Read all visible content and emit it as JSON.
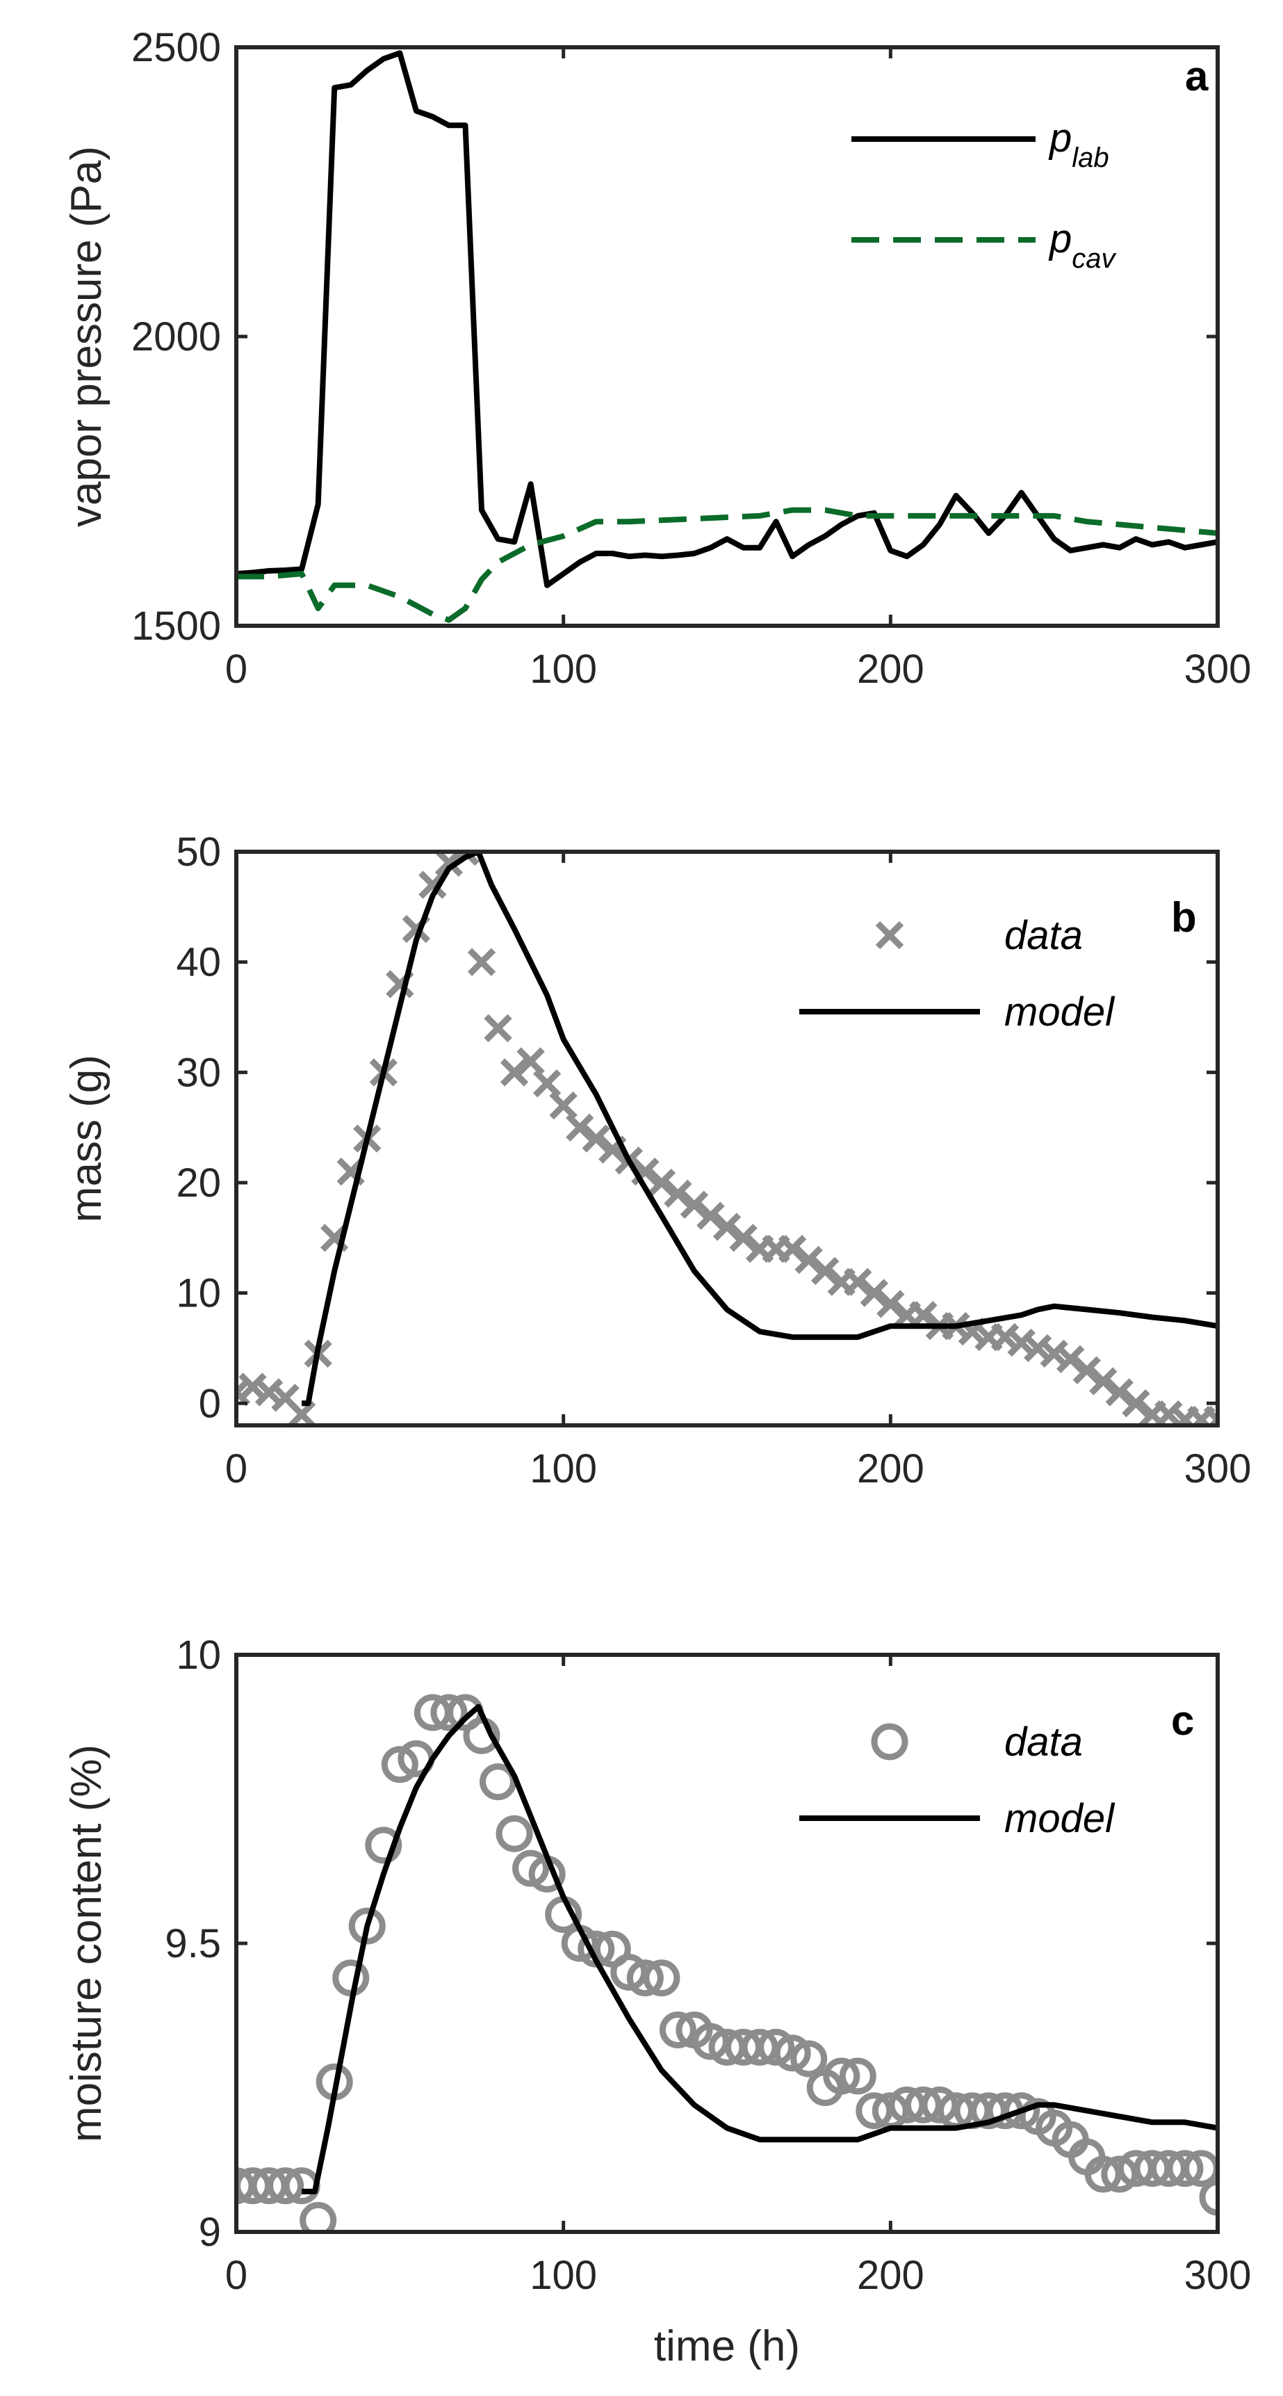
{
  "chart_data": [
    {
      "id": "a",
      "type": "line",
      "panel_label": "a",
      "xlabel": "",
      "ylabel": "vapor pressure (Pa)",
      "xlim": [
        0,
        300
      ],
      "ylim": [
        1500,
        2500
      ],
      "xticks": [
        0,
        100,
        200,
        300
      ],
      "yticks": [
        1500,
        2000,
        2500
      ],
      "legend_position": "top-right",
      "series": [
        {
          "name": "p_lab",
          "label_main": "p",
          "label_sub": "lab",
          "style": "solid",
          "color": "#000000",
          "x": [
            0,
            5,
            10,
            15,
            20,
            25,
            30,
            35,
            40,
            45,
            50,
            55,
            60,
            65,
            70,
            75,
            80,
            85,
            90,
            95,
            100,
            105,
            110,
            115,
            120,
            125,
            130,
            135,
            140,
            145,
            150,
            155,
            160,
            165,
            170,
            175,
            180,
            185,
            190,
            195,
            200,
            205,
            210,
            215,
            220,
            225,
            230,
            235,
            240,
            245,
            250,
            255,
            260,
            265,
            270,
            275,
            280,
            285,
            290,
            295,
            300
          ],
          "y": [
            1590,
            1592,
            1595,
            1596,
            1598,
            1710,
            2430,
            2435,
            2460,
            2480,
            2490,
            2390,
            2380,
            2365,
            2365,
            1700,
            1650,
            1645,
            1745,
            1570,
            1590,
            1610,
            1625,
            1625,
            1620,
            1622,
            1620,
            1622,
            1625,
            1635,
            1650,
            1635,
            1635,
            1680,
            1620,
            1640,
            1655,
            1675,
            1690,
            1695,
            1630,
            1620,
            1640,
            1675,
            1725,
            1695,
            1660,
            1690,
            1730,
            1690,
            1650,
            1630,
            1635,
            1640,
            1635,
            1650,
            1640,
            1645,
            1635,
            1640,
            1645
          ]
        },
        {
          "name": "p_cav",
          "label_main": "p",
          "label_sub": "cav",
          "style": "dashed",
          "color": "#0b6b2a",
          "x": [
            0,
            10,
            20,
            25,
            30,
            40,
            50,
            60,
            65,
            70,
            75,
            80,
            90,
            100,
            110,
            120,
            140,
            160,
            170,
            180,
            190,
            200,
            220,
            240,
            250,
            260,
            270,
            280,
            290,
            300
          ],
          "y": [
            1585,
            1585,
            1590,
            1530,
            1570,
            1570,
            1550,
            1520,
            1510,
            1530,
            1580,
            1610,
            1640,
            1655,
            1680,
            1680,
            1685,
            1690,
            1700,
            1700,
            1690,
            1690,
            1690,
            1690,
            1690,
            1680,
            1675,
            1670,
            1665,
            1660
          ]
        }
      ]
    },
    {
      "id": "b",
      "type": "scatter+line",
      "panel_label": "b",
      "xlabel": "",
      "ylabel": "mass (g)",
      "xlim": [
        0,
        300
      ],
      "ylim": [
        -2,
        50
      ],
      "xticks": [
        0,
        100,
        200,
        300
      ],
      "yticks": [
        0,
        10,
        20,
        30,
        40,
        50
      ],
      "legend_position": "top-right",
      "series": [
        {
          "name": "data",
          "marker": "x",
          "color": "#8c8c8c",
          "x": [
            0,
            5,
            10,
            15,
            20,
            25,
            30,
            35,
            40,
            45,
            50,
            55,
            60,
            65,
            70,
            75,
            80,
            85,
            90,
            95,
            100,
            105,
            110,
            115,
            120,
            125,
            130,
            135,
            140,
            145,
            150,
            155,
            160,
            165,
            170,
            175,
            180,
            185,
            190,
            195,
            200,
            205,
            210,
            215,
            220,
            225,
            230,
            235,
            240,
            245,
            250,
            255,
            260,
            265,
            270,
            275,
            280,
            285,
            290,
            295,
            300
          ],
          "y": [
            1,
            1.5,
            1,
            0.5,
            -1,
            4.5,
            15,
            21,
            24,
            30,
            38,
            43,
            47,
            49,
            50,
            40,
            34,
            30,
            31,
            29,
            27,
            25,
            24,
            23,
            22,
            21,
            20,
            19,
            18,
            17,
            16,
            15,
            14,
            14,
            14,
            13,
            12,
            11,
            11,
            10,
            9,
            8,
            8,
            7,
            7,
            6.5,
            6,
            6,
            5.5,
            5,
            4.5,
            4,
            3,
            2,
            1,
            0,
            -1,
            -1,
            -1.5,
            -1.5,
            -1.5
          ]
        },
        {
          "name": "model",
          "style": "solid",
          "color": "#000000",
          "x": [
            20,
            22,
            25,
            30,
            35,
            40,
            45,
            50,
            55,
            60,
            65,
            70,
            74,
            78,
            85,
            90,
            95,
            100,
            110,
            120,
            130,
            140,
            150,
            160,
            170,
            180,
            190,
            200,
            210,
            220,
            230,
            240,
            245,
            250,
            260,
            270,
            280,
            290,
            300
          ],
          "y": [
            0,
            0,
            5,
            12,
            18,
            24,
            30,
            36,
            42,
            46,
            48.5,
            49.5,
            50,
            47,
            43,
            40,
            37,
            33,
            28,
            22,
            17,
            12,
            8.5,
            6.5,
            6,
            6,
            6,
            7,
            7,
            7,
            7.5,
            8,
            8.5,
            8.8,
            8.5,
            8.2,
            7.8,
            7.5,
            7
          ]
        }
      ]
    },
    {
      "id": "c",
      "type": "scatter+line",
      "panel_label": "c",
      "xlabel": "time (h)",
      "ylabel": "moisture content (%)",
      "xlim": [
        0,
        300
      ],
      "ylim": [
        9,
        10
      ],
      "xticks": [
        0,
        100,
        200,
        300
      ],
      "yticks": [
        9,
        9.5,
        10
      ],
      "legend_position": "top-right",
      "series": [
        {
          "name": "data",
          "marker": "o",
          "color": "#8c8c8c",
          "x": [
            0,
            5,
            10,
            15,
            20,
            25,
            30,
            35,
            40,
            45,
            50,
            55,
            60,
            65,
            70,
            75,
            80,
            85,
            90,
            95,
            100,
            105,
            110,
            115,
            120,
            125,
            130,
            135,
            140,
            145,
            150,
            155,
            160,
            165,
            170,
            175,
            180,
            185,
            190,
            195,
            200,
            205,
            210,
            215,
            220,
            225,
            230,
            235,
            240,
            245,
            250,
            255,
            260,
            265,
            270,
            275,
            280,
            285,
            290,
            295,
            300
          ],
          "y": [
            9.08,
            9.08,
            9.08,
            9.08,
            9.08,
            9.02,
            9.26,
            9.44,
            9.53,
            9.67,
            9.81,
            9.82,
            9.9,
            9.9,
            9.9,
            9.86,
            9.78,
            9.69,
            9.63,
            9.62,
            9.55,
            9.5,
            9.49,
            9.49,
            9.45,
            9.44,
            9.44,
            9.35,
            9.35,
            9.33,
            9.32,
            9.32,
            9.32,
            9.32,
            9.31,
            9.3,
            9.25,
            9.27,
            9.27,
            9.21,
            9.21,
            9.22,
            9.22,
            9.22,
            9.21,
            9.21,
            9.21,
            9.21,
            9.21,
            9.2,
            9.18,
            9.16,
            9.13,
            9.1,
            9.1,
            9.11,
            9.11,
            9.11,
            9.11,
            9.11,
            9.06
          ]
        },
        {
          "name": "model",
          "style": "solid",
          "color": "#000000",
          "x": [
            20,
            24,
            28,
            32,
            36,
            40,
            45,
            50,
            55,
            60,
            65,
            70,
            74,
            78,
            85,
            90,
            95,
            100,
            110,
            120,
            130,
            140,
            150,
            160,
            170,
            180,
            190,
            200,
            210,
            220,
            230,
            240,
            245,
            250,
            260,
            270,
            280,
            290,
            300
          ],
          "y": [
            9.07,
            9.07,
            9.18,
            9.3,
            9.42,
            9.53,
            9.62,
            9.7,
            9.77,
            9.82,
            9.86,
            9.89,
            9.91,
            9.86,
            9.79,
            9.72,
            9.65,
            9.58,
            9.47,
            9.37,
            9.28,
            9.22,
            9.18,
            9.16,
            9.16,
            9.16,
            9.16,
            9.18,
            9.18,
            9.18,
            9.19,
            9.21,
            9.22,
            9.22,
            9.21,
            9.2,
            9.19,
            9.19,
            9.18
          ]
        }
      ]
    }
  ]
}
